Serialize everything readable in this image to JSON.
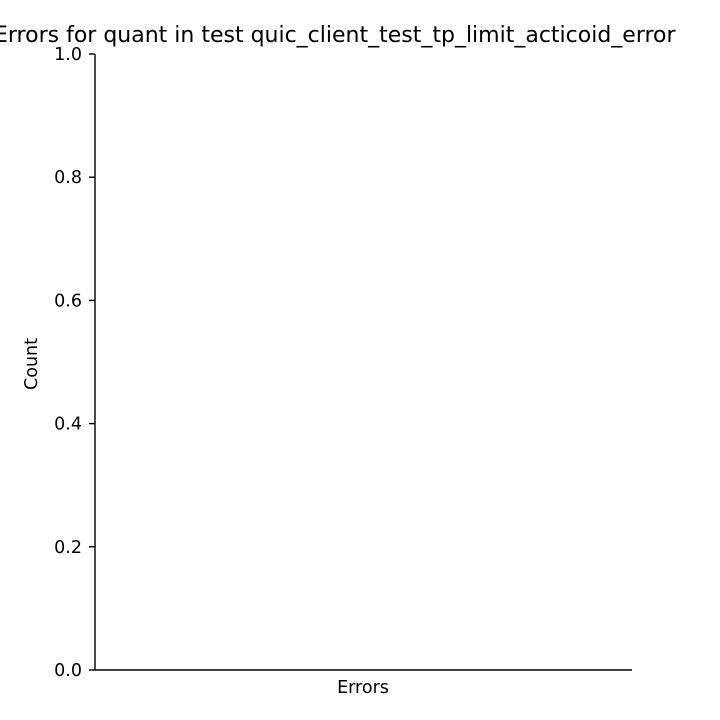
{
  "chart_data": {
    "type": "bar",
    "title": "Errors for quant in test quic_client_test_tp_limit_acticoid_error",
    "xlabel": "Errors",
    "ylabel": "Count",
    "categories": [],
    "values": [],
    "ylim": [
      0,
      1.0
    ],
    "yticks": [
      0.0,
      0.2,
      0.4,
      0.6,
      0.8,
      1.0
    ],
    "ytick_labels": [
      "0.0",
      "0.2",
      "0.4",
      "0.6",
      "0.8",
      "1.0"
    ],
    "grid": false,
    "legend": "none",
    "axis_color": "#000000",
    "background_color": "#ffffff"
  }
}
